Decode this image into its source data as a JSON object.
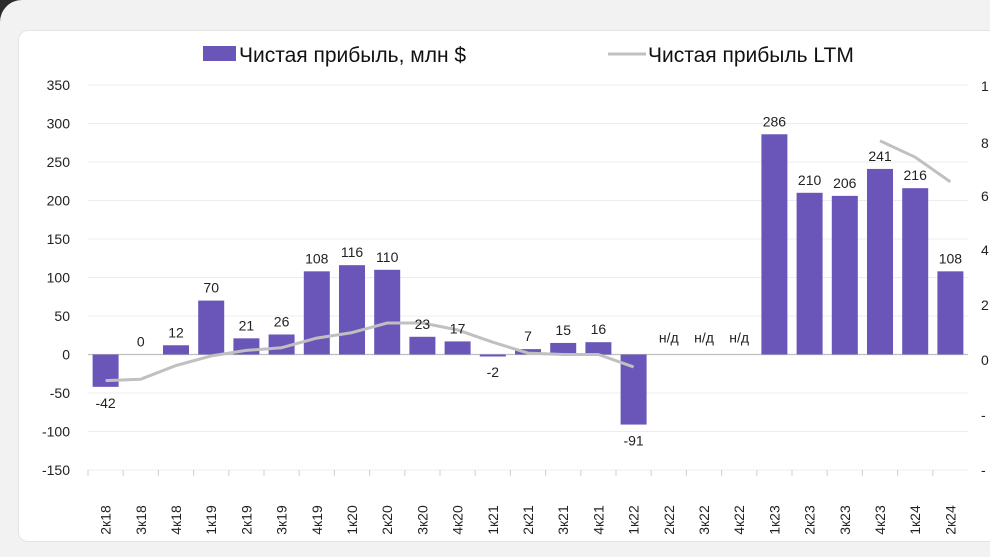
{
  "chart_data": {
    "type": "bar",
    "legend_position": "top",
    "grid": true,
    "ylim": [
      -150,
      350
    ],
    "y_ticks": [
      350,
      300,
      250,
      200,
      150,
      100,
      50,
      0,
      -50,
      -100,
      -150
    ],
    "y2_ticks": [
      "1",
      "8",
      "6",
      "4",
      "2",
      "0",
      "-",
      "-"
    ],
    "categories": [
      "2к18",
      "3к18",
      "4к18",
      "1к19",
      "2к19",
      "3к19",
      "4к19",
      "1к20",
      "2к20",
      "3к20",
      "4к20",
      "1к21",
      "2к21",
      "3к21",
      "4к21",
      "1к22",
      "2к22",
      "3к22",
      "4к22",
      "1к23",
      "2к23",
      "3к23",
      "4к23",
      "1к24",
      "2к24"
    ],
    "series": [
      {
        "name": "Чистая прибыль, млн $",
        "kind": "bar",
        "color": "#6a55b9",
        "values": [
          -42,
          0,
          12,
          70,
          21,
          26,
          108,
          116,
          110,
          23,
          17,
          -2,
          7,
          15,
          16,
          -91,
          null,
          null,
          null,
          286,
          210,
          206,
          241,
          216,
          108
        ],
        "labels": [
          "-42",
          "0",
          "12",
          "70",
          "21",
          "26",
          "108",
          "116",
          "110",
          "23",
          "17",
          "-2",
          "7",
          "15",
          "16",
          "-91",
          "н/д",
          "н/д",
          "н/д",
          "286",
          "210",
          "206",
          "241",
          "216",
          "108"
        ]
      },
      {
        "name": "Чистая прибыль LTM",
        "kind": "line",
        "color": "#c0c0c0",
        "values": [
          -75,
          -70,
          -20,
          15,
          35,
          45,
          80,
          100,
          135,
          135,
          110,
          65,
          25,
          20,
          20,
          -25,
          null,
          null,
          null,
          null,
          null,
          null,
          800,
          740,
          650
        ]
      }
    ]
  }
}
